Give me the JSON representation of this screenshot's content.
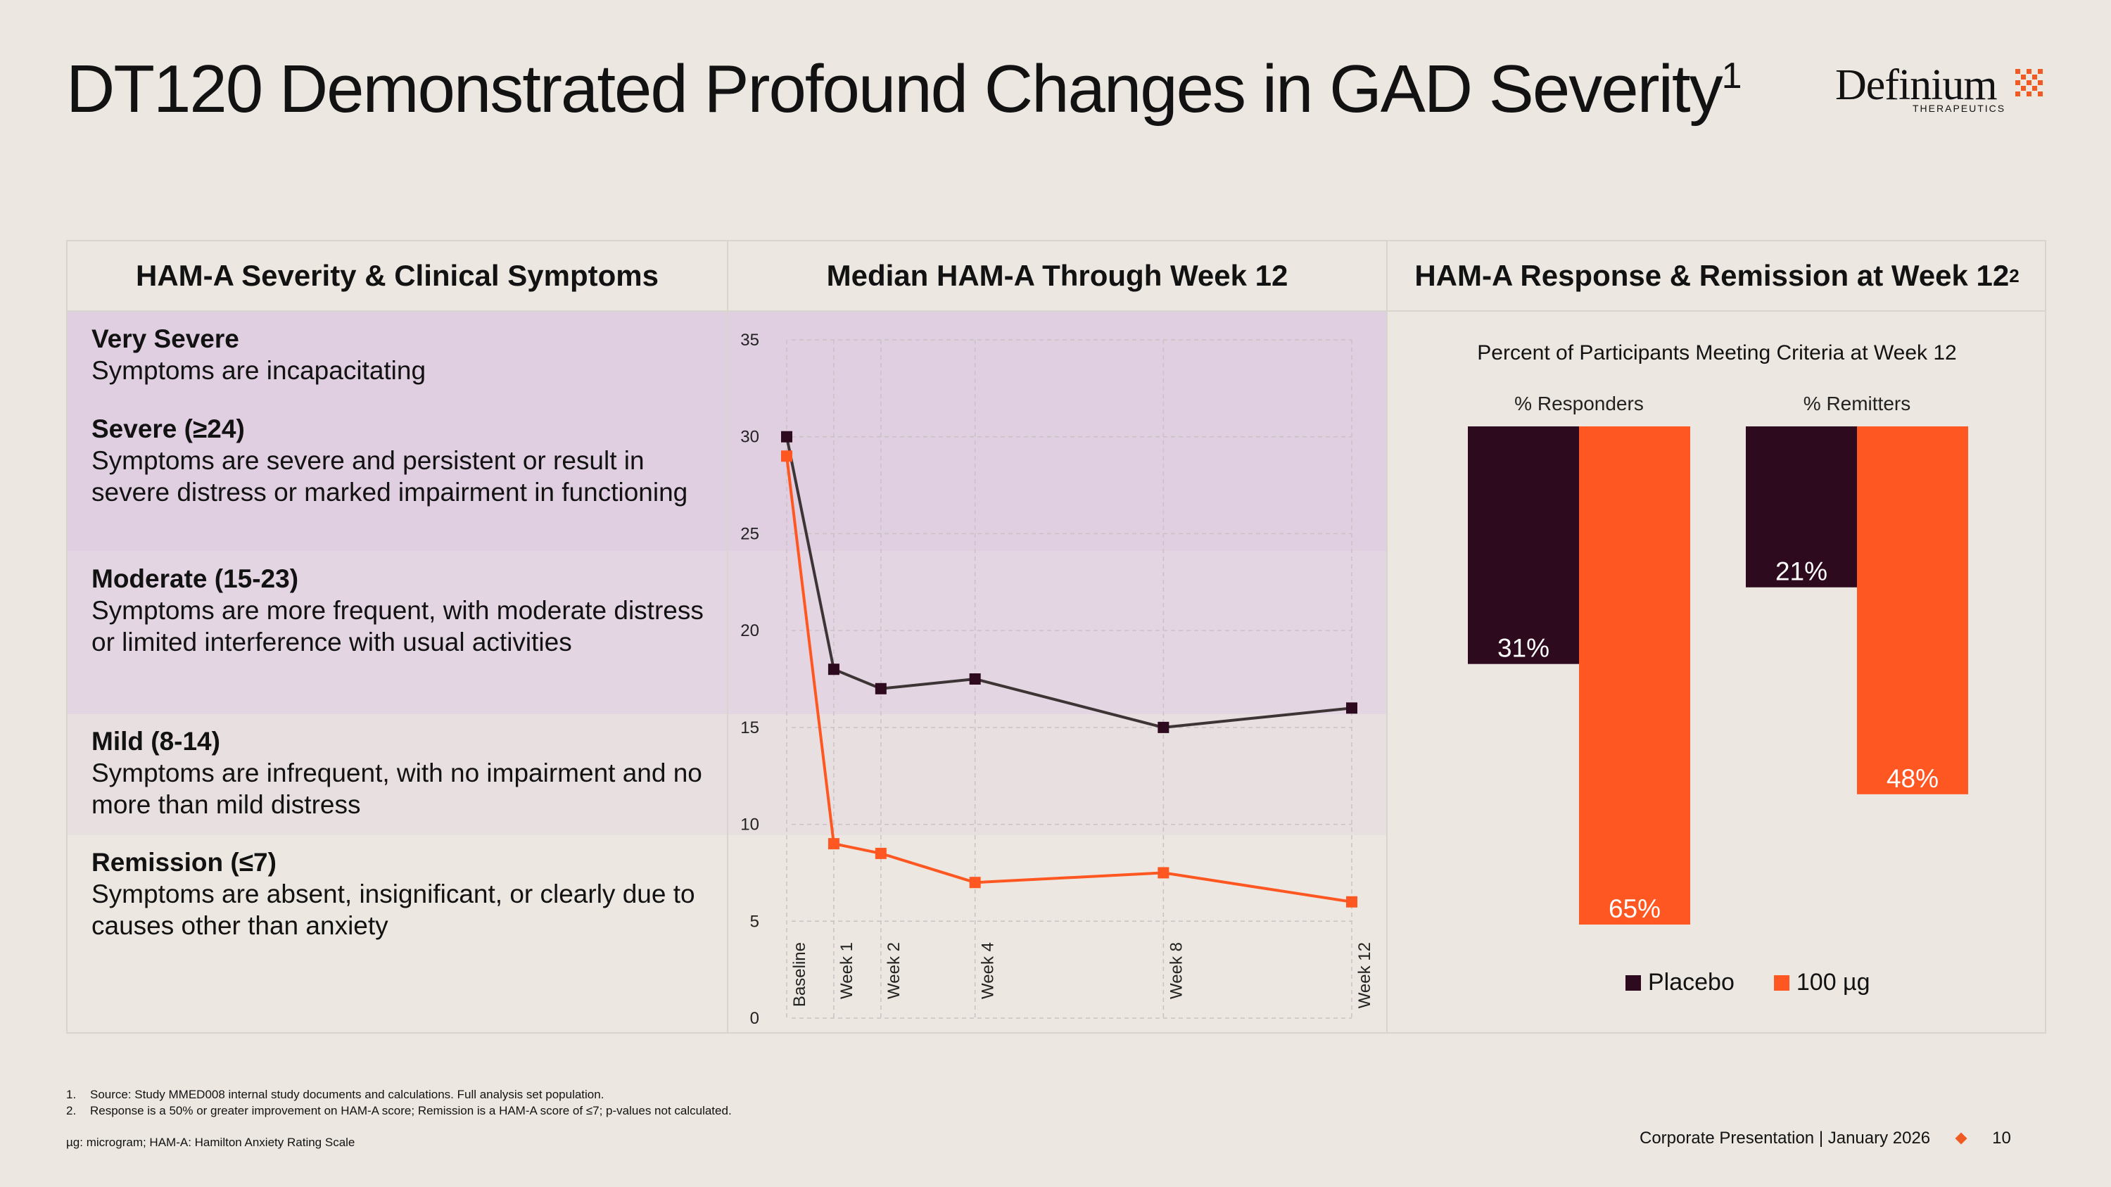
{
  "title": {
    "text": "DT120 Demonstrated Profound Changes in GAD Severity",
    "sup": "1"
  },
  "logo": {
    "name": "Definium",
    "sub": "THERAPEUTICS"
  },
  "columns": {
    "left": "HAM-A Severity & Clinical Symptoms",
    "middle": "Median HAM-A Through Week 12",
    "right": "HAM-A Response & Remission at Week 12",
    "right_sup": "2"
  },
  "severity": [
    {
      "name": "Very Severe",
      "desc": "Symptoms are incapacitating"
    },
    {
      "name": "Severe (≥24)",
      "desc": "Symptoms are severe and persistent or result in severe distress or marked impairment in functioning"
    },
    {
      "name": "Moderate (15-23)",
      "desc": "Symptoms are more frequent, with moderate distress or limited interference with usual activities"
    },
    {
      "name": "Mild (8-14)",
      "desc": "Symptoms are infrequent, with no impairment and no more than mild distress"
    },
    {
      "name": "Remission (≤7)",
      "desc": "Symptoms are absent, insignificant, or clearly due to causes other than anxiety"
    }
  ],
  "colors": {
    "placebo": "#2E0A1E",
    "dose": "#FF5722",
    "line_placebo": "#3D3535",
    "band_severe": "#E0CFE0",
    "band_moderate": "#E3D6E2",
    "band_mild": "#E8DFE1"
  },
  "chart_data": [
    {
      "type": "line",
      "title": "Median HAM-A Through Week 12",
      "categories": [
        "Baseline",
        "Week 1",
        "Week 2",
        "Week 4",
        "Week 8",
        "Week 12"
      ],
      "x": [
        0,
        1,
        2,
        4,
        8,
        12
      ],
      "series": [
        {
          "name": "Placebo",
          "values": [
            30,
            18,
            17,
            17.5,
            15,
            16
          ]
        },
        {
          "name": "100 µg",
          "values": [
            29,
            9,
            8.5,
            7,
            7.5,
            6
          ]
        }
      ],
      "ylim": [
        0,
        35
      ],
      "yticks": [
        0,
        5,
        10,
        15,
        20,
        25,
        30,
        35
      ],
      "grid": true
    },
    {
      "type": "bar",
      "title": "Percent of Participants Meeting Criteria at Week 12",
      "categories": [
        "% Responders",
        "% Remitters"
      ],
      "series": [
        {
          "name": "Placebo",
          "values": [
            31,
            21
          ],
          "labels": [
            "31%",
            "21%"
          ]
        },
        {
          "name": "100 µg",
          "values": [
            65,
            48
          ],
          "labels": [
            "65%",
            "48%"
          ]
        }
      ],
      "ylim": [
        0,
        65
      ],
      "legend": "bottom"
    }
  ],
  "legend": {
    "placebo": "Placebo",
    "dose": "100 µg"
  },
  "footnotes": [
    {
      "num": "1.",
      "text": "Source: Study MMED008 internal study documents and calculations. Full analysis set population."
    },
    {
      "num": "2.",
      "text": "Response is a 50% or greater improvement on HAM-A score; Remission is a HAM-A score of ≤7; p-values not calculated."
    }
  ],
  "abbreviations": "µg: microgram; HAM-A: Hamilton Anxiety Rating Scale",
  "footer": {
    "text": "Corporate Presentation | January 2026",
    "page": "10"
  }
}
